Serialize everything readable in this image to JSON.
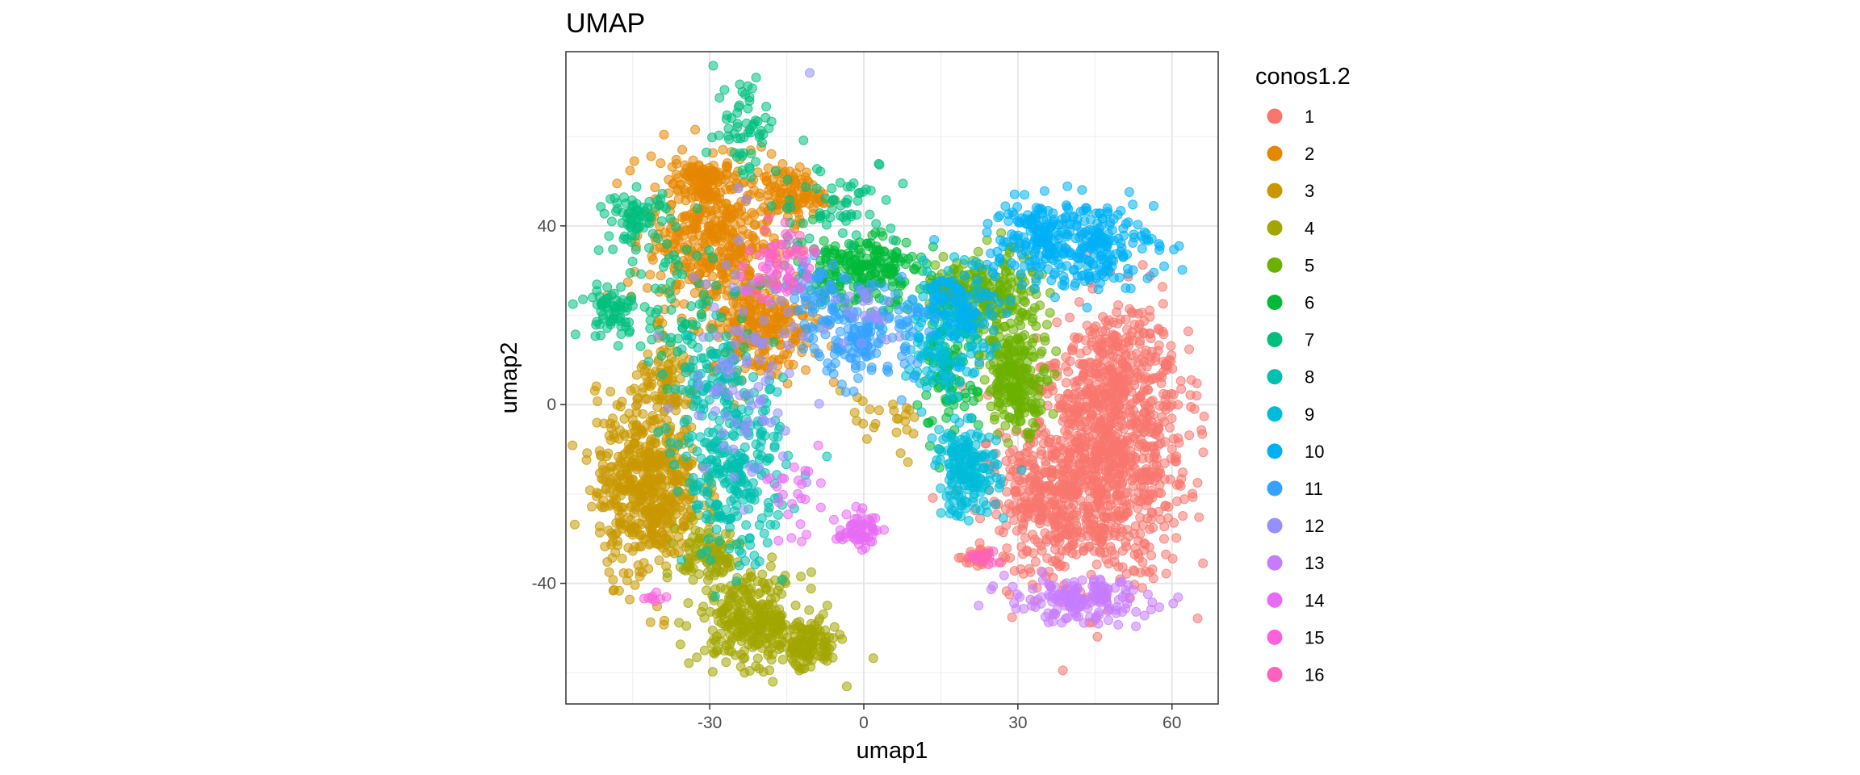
{
  "chart_data": {
    "type": "scatter",
    "title": "UMAP",
    "xlabel": "umap1",
    "ylabel": "umap2",
    "xlim": [
      -58,
      69
    ],
    "ylim": [
      -67,
      79
    ],
    "x_ticks": [
      -30,
      0,
      30,
      60
    ],
    "x_tick_labels": [
      "-30",
      "0",
      "30",
      "60"
    ],
    "y_ticks": [
      -40,
      0,
      40
    ],
    "y_tick_labels": [
      "-40",
      "0",
      "40"
    ],
    "grid": true,
    "legend": {
      "title": "conos1.2",
      "placement": "right"
    },
    "series": [
      {
        "name": "1",
        "color": "#F8766D",
        "clusters": [
          {
            "cx": 47,
            "cy": -12,
            "sx": 8,
            "sy": 14,
            "n": 900
          },
          {
            "cx": 36,
            "cy": -22,
            "sx": 6,
            "sy": 7,
            "n": 260
          },
          {
            "cx": 50,
            "cy": 8,
            "sx": 5,
            "sy": 8,
            "n": 180
          },
          {
            "cx": 23,
            "cy": -34,
            "sx": 2,
            "sy": 1.5,
            "n": 25
          }
        ]
      },
      {
        "name": "2",
        "color": "#E58700",
        "clusters": [
          {
            "cx": -30,
            "cy": 38,
            "sx": 6,
            "sy": 9,
            "n": 420
          },
          {
            "cx": -20,
            "cy": 18,
            "sx": 5,
            "sy": 6,
            "n": 260
          },
          {
            "cx": -14,
            "cy": 47,
            "sx": 3,
            "sy": 3,
            "n": 110
          },
          {
            "cx": -32,
            "cy": 50,
            "sx": 3,
            "sy": 3,
            "n": 90
          }
        ]
      },
      {
        "name": "3",
        "color": "#C99800",
        "clusters": [
          {
            "cx": -42,
            "cy": -18,
            "sx": 5,
            "sy": 10,
            "n": 560
          },
          {
            "cx": -38,
            "cy": 5,
            "sx": 3,
            "sy": 4,
            "n": 80
          },
          {
            "cx": 3,
            "cy": -5,
            "sx": 6,
            "sy": 4,
            "n": 25
          }
        ]
      },
      {
        "name": "4",
        "color": "#A3A500",
        "clusters": [
          {
            "cx": -22,
            "cy": -48,
            "sx": 5,
            "sy": 5,
            "n": 280
          },
          {
            "cx": -11,
            "cy": -54,
            "sx": 3,
            "sy": 3,
            "n": 120
          },
          {
            "cx": -30,
            "cy": -34,
            "sx": 3,
            "sy": 4,
            "n": 100
          }
        ]
      },
      {
        "name": "5",
        "color": "#6BB100",
        "clusters": [
          {
            "cx": 26,
            "cy": 22,
            "sx": 4,
            "sy": 6,
            "n": 200
          },
          {
            "cx": 30,
            "cy": 5,
            "sx": 3,
            "sy": 5,
            "n": 200
          },
          {
            "cx": 18,
            "cy": 26,
            "sx": 3,
            "sy": 3,
            "n": 90
          }
        ]
      },
      {
        "name": "6",
        "color": "#00BA38",
        "clusters": [
          {
            "cx": -1,
            "cy": 30,
            "sx": 6,
            "sy": 4,
            "n": 220
          },
          {
            "cx": 16,
            "cy": 5,
            "sx": 3,
            "sy": 8,
            "n": 90
          }
        ]
      },
      {
        "name": "7",
        "color": "#00BF7D",
        "clusters": [
          {
            "cx": -44,
            "cy": 42,
            "sx": 3,
            "sy": 3,
            "n": 70
          },
          {
            "cx": -49,
            "cy": 21,
            "sx": 3,
            "sy": 3,
            "n": 60
          },
          {
            "cx": -23,
            "cy": 63,
            "sx": 3,
            "sy": 6,
            "n": 60
          },
          {
            "cx": -5,
            "cy": 45,
            "sx": 6,
            "sy": 5,
            "n": 60
          },
          {
            "cx": -35,
            "cy": 22,
            "sx": 8,
            "sy": 8,
            "n": 80
          }
        ]
      },
      {
        "name": "8",
        "color": "#00C0AF",
        "clusters": [
          {
            "cx": -25,
            "cy": -15,
            "sx": 5,
            "sy": 10,
            "n": 260
          },
          {
            "cx": -30,
            "cy": 5,
            "sx": 4,
            "sy": 6,
            "n": 80
          }
        ]
      },
      {
        "name": "9",
        "color": "#00BCD8",
        "clusters": [
          {
            "cx": 20,
            "cy": -15,
            "sx": 3,
            "sy": 5,
            "n": 180
          },
          {
            "cx": 16,
            "cy": 15,
            "sx": 4,
            "sy": 7,
            "n": 150
          }
        ]
      },
      {
        "name": "10",
        "color": "#00B0F6",
        "clusters": [
          {
            "cx": 43,
            "cy": 36,
            "sx": 7,
            "sy": 5,
            "n": 250
          },
          {
            "cx": 32,
            "cy": 38,
            "sx": 4,
            "sy": 4,
            "n": 100
          },
          {
            "cx": 20,
            "cy": 22,
            "sx": 4,
            "sy": 5,
            "n": 80
          }
        ]
      },
      {
        "name": "11",
        "color": "#35A2FF",
        "clusters": [
          {
            "cx": 0,
            "cy": 15,
            "sx": 5,
            "sy": 5,
            "n": 150
          },
          {
            "cx": -10,
            "cy": 25,
            "sx": 3,
            "sy": 4,
            "n": 50
          }
        ]
      },
      {
        "name": "12",
        "color": "#9590FF",
        "clusters": [
          {
            "cx": -22,
            "cy": 10,
            "sx": 6,
            "sy": 15,
            "n": 100
          },
          {
            "cx": 0,
            "cy": 22,
            "sx": 3,
            "sy": 3,
            "n": 25
          }
        ]
      },
      {
        "name": "13",
        "color": "#C77CFF",
        "clusters": [
          {
            "cx": 42,
            "cy": -44,
            "sx": 7,
            "sy": 2.5,
            "n": 160
          }
        ]
      },
      {
        "name": "14",
        "color": "#E76BF3",
        "clusters": [
          {
            "cx": -1,
            "cy": -28,
            "sx": 2,
            "sy": 2,
            "n": 60
          },
          {
            "cx": -15,
            "cy": -20,
            "sx": 3,
            "sy": 5,
            "n": 25
          }
        ]
      },
      {
        "name": "15",
        "color": "#FA62DB",
        "clusters": [
          {
            "cx": -17,
            "cy": 30,
            "sx": 3,
            "sy": 4,
            "n": 40
          },
          {
            "cx": -40,
            "cy": -43,
            "sx": 2,
            "sy": 1,
            "n": 8
          }
        ]
      },
      {
        "name": "16",
        "color": "#FF62BC",
        "clusters": [
          {
            "cx": 24,
            "cy": -34,
            "sx": 1.5,
            "sy": 1,
            "n": 15
          },
          {
            "cx": -15,
            "cy": 35,
            "sx": 3,
            "sy": 3,
            "n": 20
          }
        ]
      }
    ]
  }
}
